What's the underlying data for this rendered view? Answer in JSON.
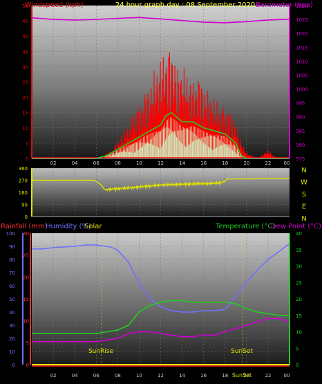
{
  "header": {
    "wind_title": "Windspeed (kph)",
    "date_title": "24 hour graph day : 08 September 2020",
    "baro_title": "Barometer (hpa)"
  },
  "lower_header": {
    "rain_label": "Rainfall (mm)",
    "humidity_label": "Humidity (%)",
    "solar_label": "Solar",
    "temp_label": "Temperature (°C)",
    "dew_label": "Dew Point (°C)"
  },
  "compass": [
    "N",
    "W",
    "S",
    "E",
    "N"
  ],
  "markers": {
    "sunrise": "SunRise",
    "sunset": "SunSet",
    "sunset_axis": "SunSet"
  },
  "colors": {
    "wind": "#ff1010",
    "gust": "#ff0000",
    "avg": "#22cc22",
    "calm": "#ccffcc",
    "baro": "#d000d0",
    "dir": "#e0e000",
    "hum": "#7070ff",
    "temp": "#22cc22",
    "dew": "#d000d0",
    "rain": "#ff3030"
  },
  "chart_data": [
    {
      "type": "line",
      "title": "24 hour graph day : 08 September 2020",
      "x_ticks": [
        "02",
        "04",
        "06",
        "08",
        "10",
        "12",
        "14",
        "16",
        "18",
        "20",
        "22",
        "00"
      ],
      "y_left_label": "Windspeed (kph)",
      "y_left_ticks": [
        0,
        5,
        10,
        15,
        20,
        25,
        30,
        35,
        40,
        45,
        50
      ],
      "y_left_range": [
        0,
        50
      ],
      "y_right_label": "Barometer (hpa)",
      "y_right_ticks": [
        975,
        980,
        985,
        990,
        995,
        1000,
        1005,
        1010,
        1015,
        1020,
        1025,
        1030
      ],
      "y_right_range": [
        975,
        1030
      ],
      "series": [
        {
          "name": "Windspeed (kph)",
          "axis": "left",
          "x": [
            0,
            2,
            4,
            6,
            7,
            7.5,
            8,
            8.5,
            9,
            9.5,
            10,
            10.5,
            11,
            11.5,
            12,
            12.5,
            13,
            13.5,
            14,
            14.5,
            15,
            15.5,
            16,
            16.5,
            17,
            17.5,
            18,
            18.5,
            19,
            19.5,
            20,
            21,
            22,
            22.5,
            23,
            24
          ],
          "y": [
            0,
            0,
            0,
            0,
            2,
            3,
            6,
            9,
            12,
            16,
            18,
            22,
            24,
            30,
            33,
            36,
            38,
            30,
            31,
            28,
            25,
            28,
            24,
            22,
            20,
            18,
            17,
            16,
            12,
            6,
            2,
            0,
            3,
            1,
            0,
            0
          ]
        },
        {
          "name": "Wind average",
          "axis": "left",
          "x": [
            0,
            6,
            7,
            8,
            9,
            10,
            11,
            12,
            12.5,
            13,
            14,
            15,
            16,
            17,
            18,
            19,
            19.5,
            20,
            24
          ],
          "y": [
            0,
            0,
            1,
            3,
            5,
            7,
            9,
            11,
            14,
            15,
            12,
            12,
            10,
            9,
            8,
            5,
            1,
            0,
            0
          ]
        },
        {
          "name": "Barometer (hpa)",
          "axis": "right",
          "x": [
            0,
            2,
            4,
            6,
            8,
            10,
            12,
            14,
            16,
            18,
            20,
            22,
            24
          ],
          "y": [
            1025.6,
            1025.0,
            1024.8,
            1025.0,
            1025.4,
            1025.7,
            1025.2,
            1024.6,
            1024.0,
            1023.8,
            1024.2,
            1024.8,
            1025.1
          ]
        }
      ]
    },
    {
      "type": "line",
      "title": "",
      "y_left_ticks": [
        0,
        90,
        180,
        270,
        360
      ],
      "y_left_range": [
        0,
        360
      ],
      "y_right_labels": [
        "N",
        "W",
        "S",
        "E",
        "N"
      ],
      "series": [
        {
          "name": "Wind direction",
          "x": [
            0,
            5.8,
            6.4,
            6.8,
            7.5,
            8.5,
            10,
            12,
            14,
            16,
            17.6,
            18,
            18.2,
            20,
            24
          ],
          "y": [
            270,
            270,
            240,
            200,
            205,
            210,
            220,
            235,
            240,
            245,
            250,
            265,
            280,
            280,
            285
          ]
        }
      ]
    },
    {
      "type": "line",
      "title": "",
      "x_ticks": [
        "02",
        "04",
        "06",
        "08",
        "10",
        "12",
        "14",
        "16",
        "18",
        "20",
        "22",
        "00"
      ],
      "y_left_label": "Humidity (%)",
      "y_left_ticks": [
        0,
        10,
        20,
        30,
        40,
        50,
        60,
        70,
        80,
        90,
        100
      ],
      "y_left_range": [
        0,
        100
      ],
      "rain_label": "Rainfall (mm)",
      "rain_ticks": [
        0,
        5,
        10,
        15,
        20,
        25,
        30
      ],
      "rain_range": [
        0,
        30
      ],
      "y_right_label": "Temperature (°C)",
      "y_right_ticks": [
        0,
        5,
        10,
        15,
        20,
        25,
        30,
        35,
        40
      ],
      "y_right_range": [
        0,
        40
      ],
      "sunrise_hour": 6.5,
      "sunset_hour": 19.6,
      "series": [
        {
          "name": "Humidity (%)",
          "axis": "left",
          "x": [
            0,
            1,
            2,
            4,
            5,
            6,
            7,
            7.5,
            8,
            9,
            10,
            11,
            12,
            13,
            14,
            15,
            16,
            17,
            18,
            19,
            20,
            21,
            22,
            23,
            24
          ],
          "y": [
            88,
            88,
            89,
            90,
            91,
            91,
            90,
            89,
            87,
            78,
            62,
            50,
            44,
            41,
            40,
            40,
            41,
            41,
            42,
            52,
            63,
            72,
            80,
            86,
            92
          ]
        },
        {
          "name": "Temperature (°C)",
          "axis": "right",
          "x": [
            0,
            2,
            4,
            6,
            7,
            8,
            9,
            10,
            11,
            12,
            13,
            14,
            15,
            16,
            17,
            18,
            19,
            20,
            21,
            22,
            23,
            24
          ],
          "y": [
            9.5,
            9.5,
            9.5,
            9.5,
            10,
            10.5,
            12,
            16,
            18,
            19,
            19.5,
            19.5,
            19,
            19,
            19,
            19,
            18.5,
            17,
            16,
            15.5,
            15,
            15
          ]
        },
        {
          "name": "Dew Point (°C)",
          "axis": "right",
          "x": [
            0,
            2,
            4,
            6,
            7,
            8,
            9,
            10,
            11,
            12,
            13,
            14,
            15,
            16,
            17,
            18,
            19,
            20,
            21,
            22,
            23,
            24
          ],
          "y": [
            7,
            7,
            7,
            7,
            7.5,
            8,
            9.5,
            10,
            10,
            9.5,
            9,
            8.5,
            8.5,
            9,
            9,
            10,
            11,
            12,
            13,
            14,
            14,
            13
          ]
        },
        {
          "name": "Rainfall (mm)",
          "axis": "rain",
          "x": [
            0,
            24
          ],
          "y": [
            0,
            0
          ]
        }
      ]
    }
  ]
}
